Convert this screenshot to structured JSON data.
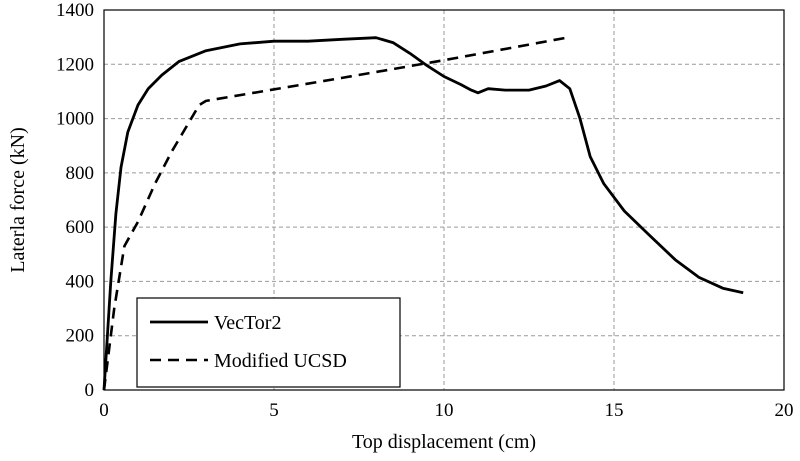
{
  "chart_data": {
    "type": "line",
    "title": "",
    "xlabel": "Top displacement (cm)",
    "ylabel": "Laterla force (kN)",
    "xlim": [
      0,
      20
    ],
    "ylim": [
      0,
      1400
    ],
    "xticks": [
      0,
      5,
      10,
      15,
      20
    ],
    "yticks": [
      0,
      200,
      400,
      600,
      800,
      1000,
      1200,
      1400
    ],
    "grid": true,
    "legend_position": "bottom-left",
    "series": [
      {
        "name": "VecTor2",
        "style": "solid",
        "color": "#000000",
        "points": [
          [
            0,
            0
          ],
          [
            0.1,
            200
          ],
          [
            0.2,
            400
          ],
          [
            0.35,
            650
          ],
          [
            0.5,
            820
          ],
          [
            0.7,
            950
          ],
          [
            1.0,
            1050
          ],
          [
            1.3,
            1110
          ],
          [
            1.7,
            1160
          ],
          [
            2.2,
            1210
          ],
          [
            3.0,
            1250
          ],
          [
            4.0,
            1275
          ],
          [
            5.0,
            1285
          ],
          [
            6.0,
            1285
          ],
          [
            7.0,
            1292
          ],
          [
            8.0,
            1298
          ],
          [
            8.5,
            1280
          ],
          [
            9.0,
            1240
          ],
          [
            9.5,
            1195
          ],
          [
            10.0,
            1155
          ],
          [
            10.5,
            1125
          ],
          [
            10.8,
            1105
          ],
          [
            11.0,
            1095
          ],
          [
            11.3,
            1110
          ],
          [
            11.8,
            1105
          ],
          [
            12.5,
            1105
          ],
          [
            13.0,
            1120
          ],
          [
            13.4,
            1140
          ],
          [
            13.7,
            1110
          ],
          [
            14.0,
            1000
          ],
          [
            14.3,
            860
          ],
          [
            14.7,
            760
          ],
          [
            15.3,
            660
          ],
          [
            16.0,
            575
          ],
          [
            16.8,
            480
          ],
          [
            17.5,
            415
          ],
          [
            18.2,
            375
          ],
          [
            18.8,
            358
          ]
        ]
      },
      {
        "name": "Modified UCSD",
        "style": "dashed",
        "color": "#000000",
        "points": [
          [
            0,
            0
          ],
          [
            0.3,
            300
          ],
          [
            0.6,
            530
          ],
          [
            1.0,
            620
          ],
          [
            1.5,
            760
          ],
          [
            2.0,
            880
          ],
          [
            2.8,
            1050
          ],
          [
            3.0,
            1065
          ],
          [
            7.0,
            1150
          ],
          [
            10.0,
            1215
          ],
          [
            13.7,
            1300
          ]
        ]
      }
    ]
  }
}
